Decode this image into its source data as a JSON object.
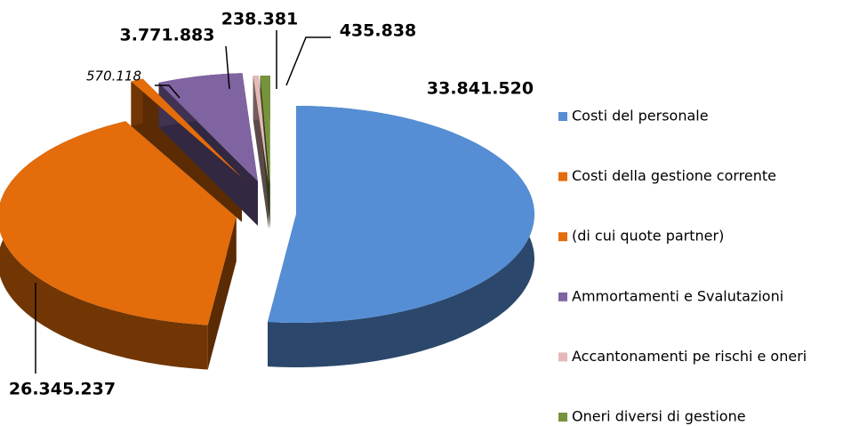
{
  "chart_data": {
    "type": "pie",
    "categories": [
      "Costi del personale",
      "Costi della gestione corrente",
      "(di cui quote partner)",
      "Ammortamenti e Svalutazioni",
      "Accantonamenti pe rischi e oneri",
      "Oneri diversi di gestione"
    ],
    "values": [
      33841520,
      26345237,
      570118,
      3771883,
      238381,
      435838
    ],
    "value_labels": [
      "33.841.520",
      "26.345.237",
      "570.118",
      "3.771.883",
      "238.381",
      "435.838"
    ],
    "colors": [
      "#558ed5",
      "#e46c0a",
      "#e46c0a",
      "#8064a2",
      "#e6b9b8",
      "#77933c"
    ],
    "legend": "right"
  }
}
